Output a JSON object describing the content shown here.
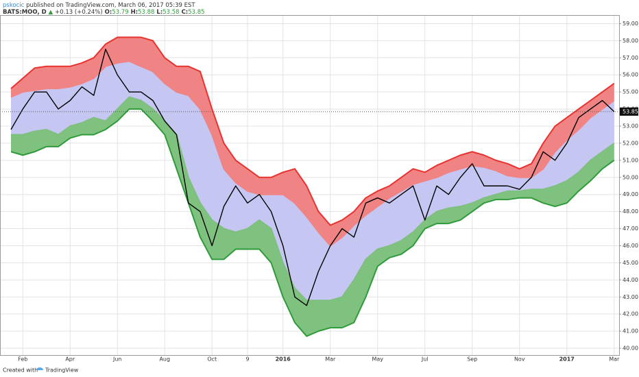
{
  "chart_data": {
    "type": "line",
    "header": {
      "author": "pskocic",
      "published": "published on TradingView.com, March 06, 2017 05:39 EST",
      "symbol": "BATS:MOO, D",
      "arrow": "▲",
      "change": "+0.13 (+0.24%)",
      "open_label": "O:",
      "open": 53.79,
      "high_label": "H:",
      "high": 53.88,
      "low_label": "L:",
      "low": 53.58,
      "close_label": "C:",
      "close": 53.85
    },
    "footer": {
      "created": "Created with",
      "brand": "TradingView"
    },
    "categories": [
      null,
      "Feb",
      null,
      null,
      null,
      "Apr",
      null,
      null,
      null,
      "Jun",
      null,
      null,
      null,
      "Aug",
      null,
      null,
      null,
      "Oct",
      null,
      null,
      "9",
      null,
      null,
      "2016",
      null,
      null,
      null,
      "Mar",
      null,
      null,
      null,
      "May",
      null,
      null,
      null,
      "Jul",
      null,
      null,
      null,
      "Sep",
      null,
      null,
      null,
      "Nov",
      null,
      null,
      null,
      "2017",
      null,
      null,
      null,
      "Mar"
    ],
    "series": [
      {
        "color": "#000000",
        "values": [
          52.8,
          54.0,
          55.0,
          55.0,
          54.0,
          54.5,
          55.3,
          54.8,
          57.5,
          56.0,
          55.0,
          55.0,
          54.5,
          53.3,
          52.5,
          48.5,
          48.0,
          46.0,
          48.3,
          49.5,
          48.5,
          49.0,
          48.0,
          46.0,
          43.0,
          42.5,
          44.5,
          46.0,
          47.0,
          46.5,
          48.5,
          48.8,
          48.5,
          49.0,
          49.5,
          47.5,
          49.5,
          49.0,
          50.0,
          50.8,
          49.5,
          49.5,
          49.5,
          49.3,
          50.0,
          51.5,
          51.0,
          52.0,
          53.5,
          54.0,
          54.5,
          53.85
        ]
      },
      {
        "color": "#e8322f",
        "fill": "#f08383",
        "values": [
          55.2,
          55.8,
          56.4,
          56.5,
          56.5,
          56.5,
          56.7,
          57.0,
          57.8,
          58.2,
          58.2,
          58.2,
          58.0,
          57.0,
          56.5,
          56.5,
          56.2,
          54.0,
          52.0,
          51.0,
          50.5,
          50.0,
          50.0,
          50.3,
          50.5,
          49.5,
          48.0,
          47.2,
          47.5,
          48.0,
          48.8,
          49.2,
          49.5,
          50.0,
          50.5,
          50.3,
          50.7,
          51.0,
          51.3,
          51.5,
          51.3,
          51.0,
          50.8,
          50.5,
          50.8,
          52.0,
          53.0,
          53.5,
          54.0,
          54.5,
          55.0,
          55.5
        ]
      },
      {
        "color": "#f08383",
        "fill": "#c6c6f2",
        "values": [
          54.7,
          55.0,
          55.1,
          55.2,
          55.2,
          55.3,
          55.5,
          55.8,
          56.5,
          56.7,
          56.8,
          56.5,
          56.2,
          55.5,
          55.0,
          54.8,
          54.0,
          52.5,
          50.5,
          49.7,
          49.2,
          49.0,
          49.0,
          49.0,
          48.5,
          47.7,
          46.8,
          46.0,
          46.5,
          47.2,
          47.8,
          48.3,
          48.8,
          49.2,
          49.6,
          49.8,
          50.0,
          50.3,
          50.5,
          50.7,
          50.6,
          50.4,
          50.1,
          50.0,
          50.0,
          50.5,
          51.5,
          52.2,
          52.8,
          53.5,
          54.0,
          54.5
        ]
      },
      {
        "color": "#7fbf7f",
        "fill": "#7fc17f",
        "values": [
          52.5,
          52.5,
          52.7,
          52.8,
          52.5,
          53.0,
          53.2,
          53.5,
          53.3,
          54.0,
          54.7,
          54.5,
          54.0,
          53.3,
          52.5,
          50.0,
          48.5,
          47.5,
          47.0,
          46.8,
          47.0,
          47.5,
          47.0,
          45.0,
          43.5,
          42.8,
          42.8,
          42.8,
          43.0,
          44.0,
          45.2,
          45.8,
          46.0,
          46.3,
          46.8,
          47.5,
          48.0,
          48.2,
          48.3,
          48.5,
          48.8,
          49.0,
          49.2,
          49.2,
          49.3,
          49.3,
          49.5,
          49.8,
          50.3,
          51.0,
          51.5,
          52.0
        ]
      },
      {
        "color": "#2e9a3a",
        "values": [
          51.5,
          51.3,
          51.5,
          51.8,
          51.8,
          52.3,
          52.5,
          52.5,
          52.8,
          53.3,
          54.0,
          54.0,
          53.3,
          52.5,
          50.5,
          48.5,
          46.5,
          45.2,
          45.2,
          45.8,
          45.8,
          45.8,
          45.0,
          43.0,
          41.5,
          40.7,
          41.0,
          41.2,
          41.2,
          41.5,
          43.0,
          44.8,
          45.3,
          45.5,
          46.0,
          47.0,
          47.3,
          47.3,
          47.5,
          48.0,
          48.5,
          48.7,
          48.7,
          48.8,
          48.8,
          48.5,
          48.3,
          48.5,
          49.2,
          49.8,
          50.5,
          51.0
        ]
      }
    ],
    "ylim": [
      39.6,
      59.5
    ],
    "yticks": [
      {
        "value": 40,
        "label": "40.00"
      },
      {
        "value": 41,
        "label": "41.00"
      },
      {
        "value": 42,
        "label": "42.00"
      },
      {
        "value": 43,
        "label": "43.00"
      },
      {
        "value": 44,
        "label": "44.00"
      },
      {
        "value": 45,
        "label": "45.00"
      },
      {
        "value": 46,
        "label": "46.00"
      },
      {
        "value": 47,
        "label": "47.00"
      },
      {
        "value": 48,
        "label": "48.00"
      },
      {
        "value": 49,
        "label": "49.00"
      },
      {
        "value": 50,
        "label": "50.00"
      },
      {
        "value": 51,
        "label": "51.00"
      },
      {
        "value": 52,
        "label": "52.00"
      },
      {
        "value": 53,
        "label": "53.00"
      },
      {
        "value": 54,
        "label": "54.00"
      },
      {
        "value": 55,
        "label": "55.00"
      },
      {
        "value": 56,
        "label": "56.00"
      },
      {
        "value": 57,
        "label": "57.00"
      },
      {
        "value": 58,
        "label": "58.00"
      },
      {
        "value": 59,
        "label": "59.00"
      }
    ],
    "grid": true
  }
}
